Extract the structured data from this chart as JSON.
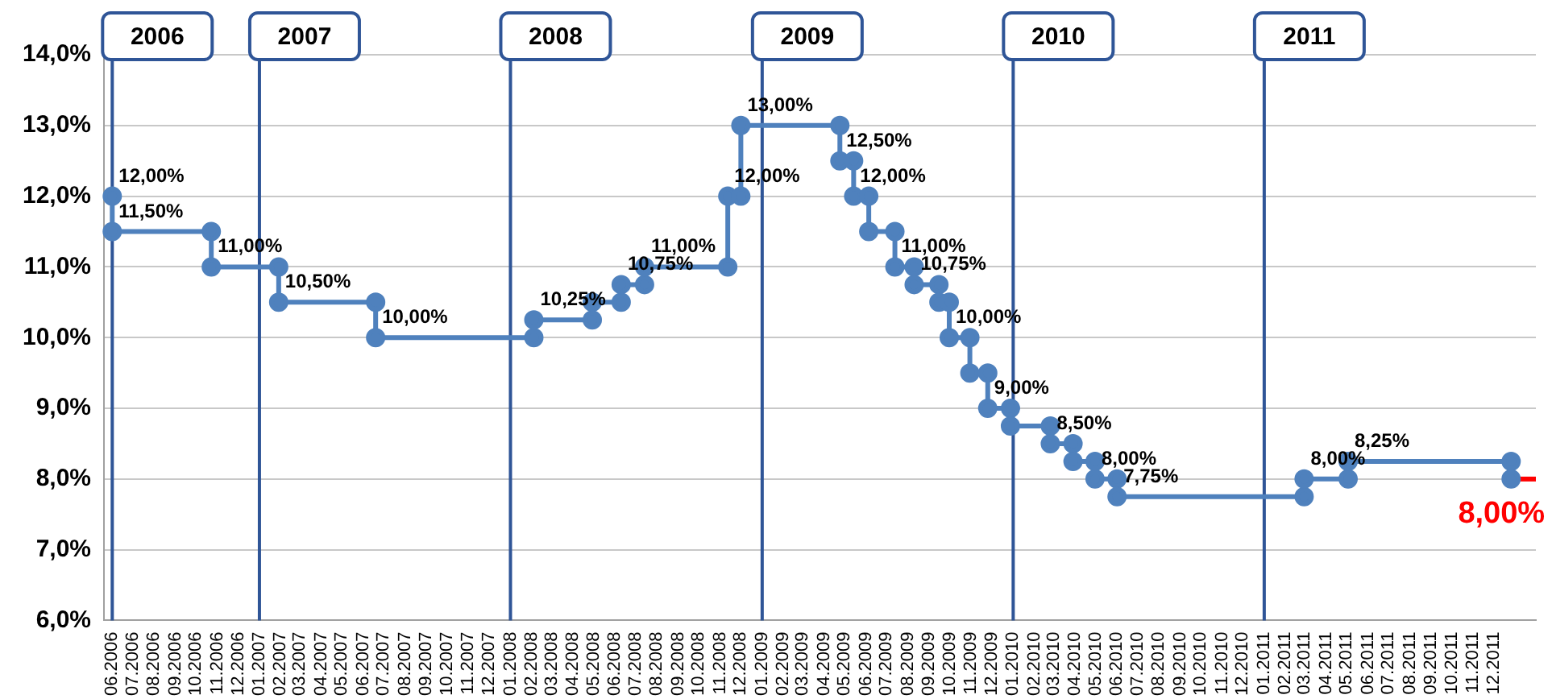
{
  "chart_data": {
    "type": "line",
    "marker": "circle",
    "grid": "y",
    "legend": false,
    "xlim": [
      "2006-05-20",
      "2012-01-31"
    ],
    "xticks": [
      {
        "value": "2006-06-01",
        "label": "06.2006"
      },
      {
        "value": "2006-07-01",
        "label": "07.2006"
      },
      {
        "value": "2006-08-01",
        "label": "08.2006"
      },
      {
        "value": "2006-09-01",
        "label": "09.2006"
      },
      {
        "value": "2006-10-01",
        "label": "10.2006"
      },
      {
        "value": "2006-11-01",
        "label": "11.2006"
      },
      {
        "value": "2006-12-01",
        "label": "12.2006"
      },
      {
        "value": "2007-01-01",
        "label": "01.2007"
      },
      {
        "value": "2007-02-01",
        "label": "02.2007"
      },
      {
        "value": "2007-03-01",
        "label": "03.2007"
      },
      {
        "value": "2007-04-01",
        "label": "04.2007"
      },
      {
        "value": "2007-05-01",
        "label": "05.2007"
      },
      {
        "value": "2007-06-01",
        "label": "06.2007"
      },
      {
        "value": "2007-07-01",
        "label": "07.2007"
      },
      {
        "value": "2007-08-01",
        "label": "08.2007"
      },
      {
        "value": "2007-09-01",
        "label": "09.2007"
      },
      {
        "value": "2007-10-01",
        "label": "10.2007"
      },
      {
        "value": "2007-11-01",
        "label": "11.2007"
      },
      {
        "value": "2007-12-01",
        "label": "12.2007"
      },
      {
        "value": "2008-01-01",
        "label": "01.2008"
      },
      {
        "value": "2008-02-01",
        "label": "02.2008"
      },
      {
        "value": "2008-03-01",
        "label": "03.2008"
      },
      {
        "value": "2008-04-01",
        "label": "04.2008"
      },
      {
        "value": "2008-05-01",
        "label": "05.2008"
      },
      {
        "value": "2008-06-01",
        "label": "06.2008"
      },
      {
        "value": "2008-07-01",
        "label": "07.2008"
      },
      {
        "value": "2008-08-01",
        "label": "08.2008"
      },
      {
        "value": "2008-09-01",
        "label": "09.2008"
      },
      {
        "value": "2008-10-01",
        "label": "10.2008"
      },
      {
        "value": "2008-11-01",
        "label": "11.2008"
      },
      {
        "value": "2008-12-01",
        "label": "12.2008"
      },
      {
        "value": "2009-01-01",
        "label": "01.2009"
      },
      {
        "value": "2009-02-01",
        "label": "02.2009"
      },
      {
        "value": "2009-03-01",
        "label": "03.2009"
      },
      {
        "value": "2009-04-01",
        "label": "04.2009"
      },
      {
        "value": "2009-05-01",
        "label": "05.2009"
      },
      {
        "value": "2009-06-01",
        "label": "06.2009"
      },
      {
        "value": "2009-07-01",
        "label": "07.2009"
      },
      {
        "value": "2009-08-01",
        "label": "08.2009"
      },
      {
        "value": "2009-09-01",
        "label": "09.2009"
      },
      {
        "value": "2009-10-01",
        "label": "10.2009"
      },
      {
        "value": "2009-11-01",
        "label": "11.2009"
      },
      {
        "value": "2009-12-01",
        "label": "12.2009"
      },
      {
        "value": "2010-01-01",
        "label": "01.2010"
      },
      {
        "value": "2010-02-01",
        "label": "02.2010"
      },
      {
        "value": "2010-03-01",
        "label": "03.2010"
      },
      {
        "value": "2010-04-01",
        "label": "04.2010"
      },
      {
        "value": "2010-05-01",
        "label": "05.2010"
      },
      {
        "value": "2010-06-01",
        "label": "06.2010"
      },
      {
        "value": "2010-07-01",
        "label": "07.2010"
      },
      {
        "value": "2010-08-01",
        "label": "08.2010"
      },
      {
        "value": "2010-09-01",
        "label": "09.2010"
      },
      {
        "value": "2010-10-01",
        "label": "10.2010"
      },
      {
        "value": "2010-11-01",
        "label": "11.2010"
      },
      {
        "value": "2010-12-01",
        "label": "12.2010"
      },
      {
        "value": "2011-01-01",
        "label": "01.2011"
      },
      {
        "value": "2011-02-01",
        "label": "02.2011"
      },
      {
        "value": "2011-03-01",
        "label": "03.2011"
      },
      {
        "value": "2011-04-01",
        "label": "04.2011"
      },
      {
        "value": "2011-05-01",
        "label": "05.2011"
      },
      {
        "value": "2011-06-01",
        "label": "06.2011"
      },
      {
        "value": "2011-07-01",
        "label": "07.2011"
      },
      {
        "value": "2011-08-01",
        "label": "08.2011"
      },
      {
        "value": "2011-09-01",
        "label": "09.2011"
      },
      {
        "value": "2011-10-01",
        "label": "10.2011"
      },
      {
        "value": "2011-11-01",
        "label": "11.2011"
      },
      {
        "value": "2011-12-01",
        "label": "12.2011"
      }
    ],
    "ylim": [
      6,
      14
    ],
    "yticks": [
      {
        "value": 6,
        "label": "6,0%"
      },
      {
        "value": 7,
        "label": "7,0%"
      },
      {
        "value": 8,
        "label": "8,0%"
      },
      {
        "value": 9,
        "label": "9,0%"
      },
      {
        "value": 10,
        "label": "10,0%"
      },
      {
        "value": 11,
        "label": "11,0%"
      },
      {
        "value": 12,
        "label": "12,0%"
      },
      {
        "value": 13,
        "label": "13,0%"
      },
      {
        "value": 14,
        "label": "14,0%"
      }
    ],
    "ref_lines": [
      {
        "axis": "x",
        "value": "2006-06-01",
        "label": "2006",
        "color": "#2f5597"
      },
      {
        "axis": "x",
        "value": "2007-01-01",
        "label": "2007",
        "color": "#2f5597"
      },
      {
        "axis": "x",
        "value": "2008-01-01",
        "label": "2008",
        "color": "#2f5597"
      },
      {
        "axis": "x",
        "value": "2009-01-01",
        "label": "2009",
        "color": "#2f5597"
      },
      {
        "axis": "x",
        "value": "2010-01-01",
        "label": "2010",
        "color": "#2f5597"
      },
      {
        "axis": "x",
        "value": "2011-01-01",
        "label": "2011",
        "color": "#2f5597"
      }
    ],
    "series": [
      {
        "color": "#4f81bd",
        "x": [
          "2006-06-01",
          "2006-06-01",
          "2006-10-23",
          "2006-10-23",
          "2007-01-29",
          "2007-01-29",
          "2007-06-19",
          "2007-06-19",
          "2008-02-04",
          "2008-02-04",
          "2008-04-29",
          "2008-04-29",
          "2008-06-10",
          "2008-06-10",
          "2008-07-14",
          "2008-07-14",
          "2008-11-12",
          "2008-11-12",
          "2008-12-01",
          "2008-12-01",
          "2009-04-24",
          "2009-04-24",
          "2009-05-14",
          "2009-05-14",
          "2009-06-05",
          "2009-06-05",
          "2009-07-13",
          "2009-07-13",
          "2009-08-10",
          "2009-08-10",
          "2009-09-15",
          "2009-09-15",
          "2009-09-30",
          "2009-09-30",
          "2009-10-30",
          "2009-10-30",
          "2009-11-25",
          "2009-11-25",
          "2009-12-28",
          "2009-12-28",
          "2010-02-24",
          "2010-02-24",
          "2010-03-29",
          "2010-03-29",
          "2010-04-30",
          "2010-04-30",
          "2010-06-01",
          "2010-06-01",
          "2011-02-28",
          "2011-02-28",
          "2011-05-03",
          "2011-05-03",
          "2011-12-26",
          "2011-12-26"
        ],
        "values": [
          12,
          11.5,
          11.5,
          11,
          11,
          10.5,
          10.5,
          10,
          10,
          10.25,
          10.25,
          10.5,
          10.5,
          10.75,
          10.75,
          11,
          11,
          12,
          12,
          13,
          13,
          12.5,
          12.5,
          12,
          12,
          11.5,
          11.5,
          11,
          11,
          10.75,
          10.75,
          10.5,
          10.5,
          10,
          10,
          9.5,
          9.5,
          9,
          9,
          8.75,
          8.75,
          8.5,
          8.5,
          8.25,
          8.25,
          8,
          8,
          7.75,
          7.75,
          8,
          8,
          8.25,
          8.25,
          8
        ],
        "value_labels": [
          "12,00%",
          "11,50%",
          null,
          "11,00%",
          null,
          "10,50%",
          null,
          "10,00%",
          null,
          "10,25%",
          null,
          null,
          null,
          "10,75%",
          null,
          "11,00%",
          null,
          "12,00%",
          null,
          "13,00%",
          null,
          "12,50%",
          null,
          "12,00%",
          null,
          null,
          null,
          "11,00%",
          null,
          "10,75%",
          null,
          null,
          null,
          "10,00%",
          null,
          null,
          null,
          "9,00%",
          null,
          null,
          null,
          "8,50%",
          null,
          null,
          null,
          "8,00%",
          null,
          "7,75%",
          null,
          "8,00%",
          null,
          "8,25%",
          null,
          null
        ]
      },
      {
        "color": "#ff0000",
        "marker": "none",
        "x": [
          "2011-12-26",
          "2012-01-31"
        ],
        "values": [
          8,
          8
        ],
        "value_labels": [
          "8,00%",
          null
        ]
      }
    ]
  }
}
